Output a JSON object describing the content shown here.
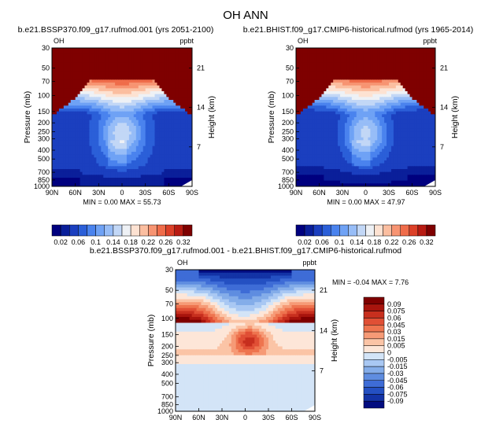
{
  "main_title": "OH ANN",
  "chart_data": [
    {
      "type": "contour",
      "title": "b.e21.BSSP370.f09_g17.rufmod.001 (yrs 2051-2100)",
      "variable": "OH",
      "units": "ppbt",
      "xlabel": "",
      "ylabel": "Pressure (mb)",
      "right_label": "Height (km)",
      "x_ticks": [
        "90N",
        "60N",
        "30N",
        "0",
        "30S",
        "60S",
        "90S"
      ],
      "y_ticks": [
        30,
        50,
        70,
        100,
        150,
        200,
        250,
        300,
        400,
        500,
        700,
        850,
        1000
      ],
      "height_ticks": [
        21,
        14,
        7
      ],
      "ylim": [
        30,
        1000
      ],
      "min_label": "MIN =",
      "min": "0.00",
      "max_label": "MAX =",
      "max": "55.73",
      "colorbar_levels": [
        "0.02",
        "0.06",
        "0.1",
        "0.14",
        "0.18",
        "0.22",
        "0.26",
        "0.32"
      ],
      "colorbar_orientation": "horizontal",
      "colors": [
        "#00007f",
        "#0a1f9a",
        "#1b3fbf",
        "#2b5fd8",
        "#4a83ee",
        "#6fa2f5",
        "#97bdf7",
        "#c2d7f6",
        "#eef1f5",
        "#fde2d2",
        "#fbbea0",
        "#f79472",
        "#ef6c4a",
        "#dc4028",
        "#b81b12",
        "#7f0000"
      ]
    },
    {
      "type": "contour",
      "title": "b.e21.BHIST.f09_g17.CMIP6-historical.rufmod (yrs 1965-2014)",
      "variable": "OH",
      "units": "ppbt",
      "xlabel": "",
      "ylabel": "Pressure (mb)",
      "right_label": "Height (km)",
      "x_ticks": [
        "90N",
        "60N",
        "30N",
        "0",
        "30S",
        "60S",
        "90S"
      ],
      "y_ticks": [
        30,
        50,
        70,
        100,
        150,
        200,
        250,
        300,
        400,
        500,
        700,
        850,
        1000
      ],
      "height_ticks": [
        21,
        14,
        7
      ],
      "ylim": [
        30,
        1000
      ],
      "min_label": "MIN =",
      "min": "0.00",
      "max_label": "MAX =",
      "max": "47.97",
      "colorbar_levels": [
        "0.02",
        "0.06",
        "0.1",
        "0.14",
        "0.18",
        "0.22",
        "0.26",
        "0.32"
      ],
      "colorbar_orientation": "horizontal",
      "colors": [
        "#00007f",
        "#0a1f9a",
        "#1b3fbf",
        "#2b5fd8",
        "#4a83ee",
        "#6fa2f5",
        "#97bdf7",
        "#c2d7f6",
        "#eef1f5",
        "#fde2d2",
        "#fbbea0",
        "#f79472",
        "#ef6c4a",
        "#dc4028",
        "#b81b12",
        "#7f0000"
      ]
    },
    {
      "type": "contour",
      "title": "b.e21.BSSP370.f09_g17.rufmod.001 - b.e21.BHIST.f09_g17.CMIP6-historical.rufmod",
      "variable": "OH",
      "units": "ppbt",
      "xlabel": "",
      "ylabel": "Pressure (mb)",
      "right_label": "Height (km)",
      "x_ticks": [
        "90N",
        "60N",
        "30N",
        "0",
        "30S",
        "60S",
        "90S"
      ],
      "y_ticks": [
        30,
        50,
        70,
        100,
        150,
        200,
        250,
        300,
        400,
        500,
        700,
        850,
        1000
      ],
      "height_ticks": [
        21,
        14,
        7
      ],
      "ylim": [
        30,
        1000
      ],
      "min_label": "MIN =",
      "min": "-0.04",
      "max_label": "MAX =",
      "max": "7.76",
      "colorbar_levels": [
        "0.09",
        "0.075",
        "0.06",
        "0.045",
        "0.03",
        "0.015",
        "0.005",
        "0",
        "-0.005",
        "-0.015",
        "-0.03",
        "-0.045",
        "-0.06",
        "-0.075",
        "-0.09"
      ],
      "colorbar_orientation": "vertical",
      "colors": [
        "#7f0000",
        "#a8140d",
        "#c72f1e",
        "#e04f35",
        "#ee744f",
        "#f69a76",
        "#fbc4a6",
        "#fde6d8",
        "#d3e4f7",
        "#a9c8f3",
        "#84ade9",
        "#5f8de0",
        "#3e6cd6",
        "#2450c2",
        "#1333a6",
        "#020c80"
      ]
    }
  ]
}
